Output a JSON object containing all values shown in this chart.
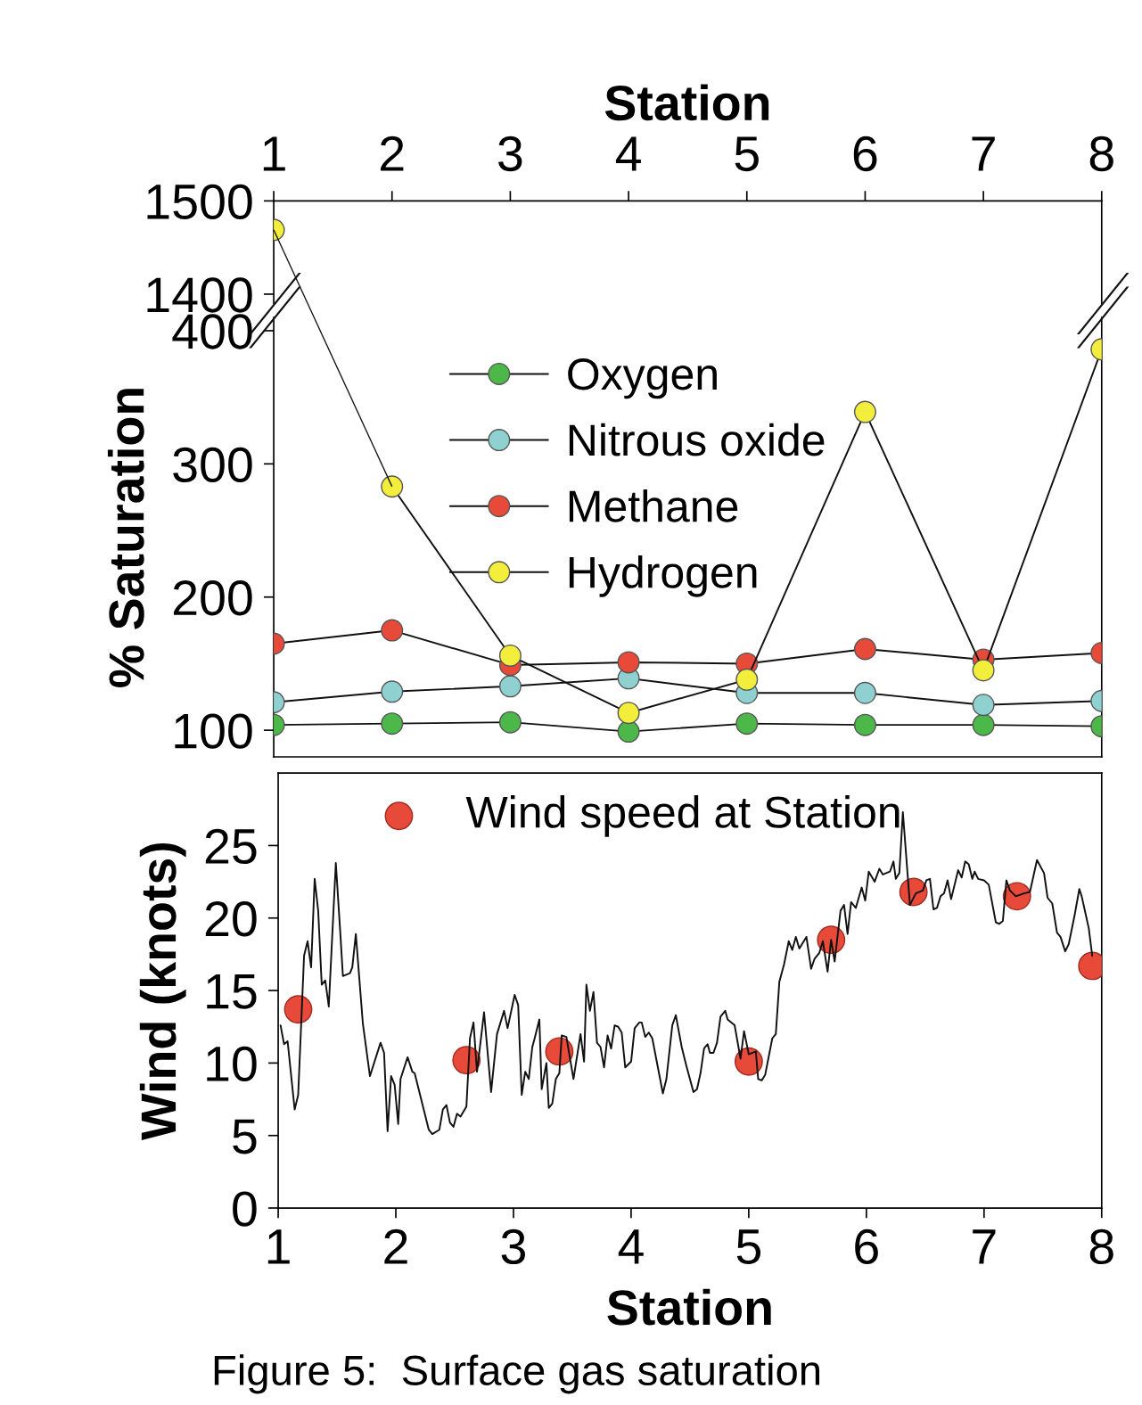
{
  "chart_data": [
    {
      "type": "line",
      "xlabel": "Station",
      "xlim": [
        1,
        8
      ],
      "xticks": [
        1,
        2,
        3,
        4,
        5,
        6,
        7,
        8
      ],
      "ylim": [
        1390,
        1500
      ],
      "yticks": [
        1400,
        1500
      ],
      "marker": "circle",
      "line_style": "solid",
      "grid": false,
      "series": [
        {
          "color": "#f3ee3c",
          "x": [
            1
          ],
          "values": [
            1469
          ]
        }
      ]
    },
    {
      "type": "line",
      "ylabel": "% Saturation",
      "x": [
        1,
        2,
        3,
        4,
        5,
        6,
        7,
        8
      ],
      "xlim": [
        1,
        8
      ],
      "ylim": [
        80,
        410
      ],
      "yticks": [
        100,
        200,
        300,
        400
      ],
      "tick_labels": "y",
      "marker": "circle",
      "line_style": "solid",
      "grid": false,
      "legend": "top",
      "series": [
        {
          "name": "Oxygen",
          "color": "#4cb849",
          "values": [
            104,
            105,
            106,
            99,
            105,
            104,
            104,
            103
          ]
        },
        {
          "name": "Nitrous oxide",
          "color": "#8fd1d0",
          "values": [
            121,
            129,
            133,
            139,
            128,
            128,
            119,
            122
          ]
        },
        {
          "name": "Methane",
          "color": "#e84a3a",
          "values": [
            165,
            175,
            149,
            151,
            150,
            161,
            153,
            158
          ]
        },
        {
          "name": "Hydrogen",
          "color": "#f3ee3c",
          "values": [
            null,
            283,
            156,
            113,
            138,
            339,
            145,
            386
          ]
        }
      ]
    },
    {
      "type": "line",
      "xlabel": "Station",
      "ylabel": "Wind (knots)",
      "xlim": [
        1,
        8
      ],
      "xticks": [
        1,
        2,
        3,
        4,
        5,
        6,
        7,
        8
      ],
      "ylim": [
        0,
        30
      ],
      "yticks": [
        0,
        5,
        10,
        15,
        20,
        25
      ],
      "grid": false,
      "legend": "top left",
      "annotations": [
        "Figure 5:  Surface gas saturation"
      ],
      "series": [
        {
          "type": "line",
          "color": "#111111",
          "marker": "none",
          "line_style": "solid",
          "x": [
            1.02,
            1.05,
            1.08,
            1.14,
            1.17,
            1.22,
            1.25,
            1.28,
            1.31,
            1.34,
            1.37,
            1.4,
            1.43,
            1.49,
            1.53,
            1.55,
            1.61,
            1.63,
            1.66,
            1.72,
            1.78,
            1.87,
            1.9,
            1.93,
            1.96,
            1.99,
            2.02,
            2.04,
            2.1,
            2.14,
            2.16,
            2.28,
            2.31,
            2.37,
            2.4,
            2.43,
            2.46,
            2.49,
            2.52,
            2.55,
            2.6,
            2.63,
            2.66,
            2.69,
            2.75,
            2.81,
            2.86,
            2.92,
            2.95,
            3.01,
            3.04,
            3.07,
            3.1,
            3.13,
            3.16,
            3.18,
            3.22,
            3.24,
            3.28,
            3.3,
            3.33,
            3.36,
            3.39,
            3.41,
            3.45,
            3.51,
            3.57,
            3.6,
            3.62,
            3.65,
            3.68,
            3.71,
            3.74,
            3.77,
            3.8,
            3.83,
            3.86,
            3.89,
            3.92,
            3.95,
            4.0,
            4.03,
            4.07,
            4.09,
            4.12,
            4.15,
            4.18,
            4.27,
            4.3,
            4.35,
            4.38,
            4.43,
            4.47,
            4.49,
            4.53,
            4.56,
            4.59,
            4.62,
            4.65,
            4.67,
            4.7,
            4.73,
            4.76,
            4.8,
            4.82,
            4.88,
            4.93,
            4.96,
            5.0,
            5.06,
            5.08,
            5.11,
            5.14,
            5.2,
            5.23,
            5.26,
            5.3,
            5.34,
            5.37,
            5.4,
            5.43,
            5.49,
            5.53,
            5.56,
            5.6,
            5.63,
            5.67,
            5.7,
            5.73,
            5.78,
            5.81,
            5.84,
            5.87,
            5.91,
            5.96,
            5.99,
            6.02,
            6.07,
            6.11,
            6.14,
            6.2,
            6.23,
            6.25,
            6.28,
            6.31,
            6.37,
            6.42,
            6.48,
            6.51,
            6.54,
            6.57,
            6.6,
            6.63,
            6.66,
            6.69,
            6.72,
            6.78,
            6.81,
            6.84,
            6.87,
            6.9,
            6.92,
            6.95,
            7.0,
            7.04,
            7.1,
            7.13,
            7.16,
            7.19,
            7.22,
            7.27,
            7.34,
            7.39,
            7.45,
            7.51,
            7.54,
            7.58,
            7.62,
            7.65,
            7.69,
            7.72,
            7.77,
            7.81,
            7.83,
            7.89,
            7.92
          ],
          "values": [
            12.6,
            11.3,
            11.5,
            6.8,
            7.8,
            17.4,
            18.4,
            16.6,
            22.7,
            20.5,
            15.4,
            15.7,
            13.9,
            23.8,
            18.7,
            16.0,
            16.2,
            16.6,
            18.9,
            12.7,
            9.1,
            11.4,
            10.7,
            5.3,
            9.1,
            8.5,
            5.8,
            8.9,
            10.4,
            9.4,
            9.3,
            5.4,
            5.1,
            5.4,
            6.8,
            7.1,
            5.9,
            5.6,
            6.5,
            6.3,
            7.0,
            11.7,
            12.8,
            9.4,
            13.5,
            8.0,
            12.0,
            13.6,
            12.4,
            14.7,
            14.0,
            7.8,
            9.4,
            8.9,
            11.1,
            11.7,
            13.0,
            8.2,
            10.0,
            6.9,
            7.2,
            8.9,
            9.3,
            11.9,
            11.8,
            8.9,
            12.0,
            10.1,
            15.4,
            13.6,
            14.9,
            11.4,
            11.1,
            9.7,
            11.9,
            11.0,
            12.6,
            12.5,
            12.1,
            9.7,
            10.1,
            12.4,
            12.8,
            12.8,
            11.8,
            12.1,
            11.7,
            7.9,
            8.9,
            12.6,
            13.3,
            11.1,
            9.8,
            9.2,
            8.0,
            8.2,
            9.3,
            11.0,
            11.3,
            10.7,
            10.7,
            11.4,
            13.2,
            13.6,
            13.0,
            12.6,
            10.3,
            12.2,
            10.6,
            10.8,
            8.9,
            8.8,
            9.2,
            11.7,
            12.0,
            15.6,
            16.8,
            18.4,
            17.8,
            18.7,
            17.9,
            18.7,
            16.5,
            17.2,
            17.6,
            18.4,
            16.3,
            18.5,
            17.0,
            20.5,
            20.9,
            18.9,
            21.1,
            20.7,
            22.1,
            21.2,
            23.2,
            22.5,
            23.4,
            23.0,
            23.2,
            23.9,
            22.7,
            23.1,
            27.3,
            20.9,
            21.7,
            21.9,
            22.6,
            22.7,
            20.6,
            20.7,
            21.5,
            21.7,
            22.6,
            21.3,
            23.3,
            22.8,
            23.9,
            23.7,
            22.7,
            23.2,
            22.7,
            22.6,
            22.3,
            19.7,
            19.6,
            19.8,
            22.6,
            21.9,
            21.5,
            21.7,
            21.8,
            24.0,
            23.1,
            21.4,
            21.0,
            19.0,
            18.7,
            17.7,
            18.2,
            20.2,
            22.0,
            21.5,
            19.3,
            17.4
          ]
        },
        {
          "type": "scatter",
          "name": "Wind speed at Station",
          "color": "#e84a3a",
          "marker": "circle",
          "x": [
            1.17,
            2.6,
            3.39,
            5.0,
            5.7,
            6.4,
            7.28,
            7.92
          ],
          "values": [
            13.7,
            10.2,
            10.8,
            10.1,
            18.5,
            21.8,
            21.5,
            16.7
          ]
        }
      ]
    }
  ]
}
